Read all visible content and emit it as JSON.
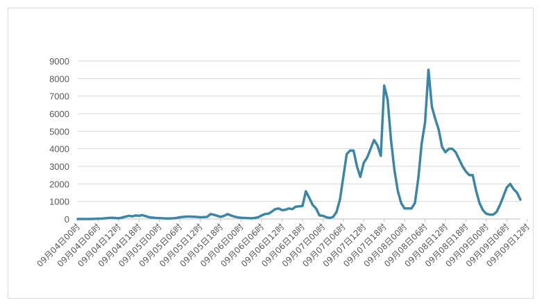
{
  "chart_data": {
    "type": "line",
    "title": "",
    "xlabel": "",
    "ylabel": "",
    "ylim": [
      0,
      9000
    ],
    "yticks": [
      0,
      1000,
      2000,
      3000,
      4000,
      5000,
      6000,
      7000,
      8000,
      9000
    ],
    "grid": "horizontal",
    "legend": "none",
    "line_color": "#3a86a8",
    "x_tick_labels": [
      "09月04日00时",
      "09月04日06时",
      "09月04日12时",
      "09月04日18时",
      "09月05日00时",
      "09月05日06时",
      "09月05日12时",
      "09月05日18时",
      "09月06日00时",
      "09月06日06时",
      "09月06日12时",
      "09月06日18时",
      "09月07日00时",
      "09月07日06时",
      "09月07日12时",
      "09月07日18时",
      "09月08日00时",
      "09月08日06时",
      "09月08日12时",
      "09月08日18时",
      "09月09日00时",
      "09月09日06时",
      "09月09日12时"
    ],
    "series": [
      {
        "values": [
          0,
          0,
          0,
          0,
          0,
          10,
          20,
          20,
          40,
          60,
          70,
          60,
          40,
          80,
          130,
          180,
          150,
          200,
          180,
          220,
          160,
          100,
          80,
          60,
          50,
          40,
          30,
          30,
          40,
          60,
          100,
          120,
          140,
          140,
          130,
          120,
          100,
          110,
          120,
          280,
          240,
          180,
          120,
          180,
          280,
          200,
          140,
          90,
          70,
          60,
          50,
          40,
          60,
          100,
          200,
          280,
          300,
          420,
          560,
          600,
          500,
          520,
          600,
          560,
          700,
          720,
          740,
          1580,
          1200,
          800,
          600,
          200,
          180,
          100,
          60,
          120,
          400,
          1100,
          2400,
          3700,
          3900,
          3900,
          3000,
          2400,
          3200,
          3500,
          4000,
          4500,
          4200,
          3600,
          7600,
          6800,
          4500,
          2800,
          1600,
          900,
          600,
          600,
          600,
          900,
          2300,
          4300,
          5500,
          8500,
          6400,
          5700,
          5100,
          4100,
          3800,
          4000,
          4000,
          3800,
          3400,
          3000,
          2700,
          2500,
          2500,
          1600,
          900,
          500,
          300,
          250,
          250,
          400,
          800,
          1300,
          1800,
          2000,
          1700,
          1500,
          1100
        ]
      }
    ]
  }
}
